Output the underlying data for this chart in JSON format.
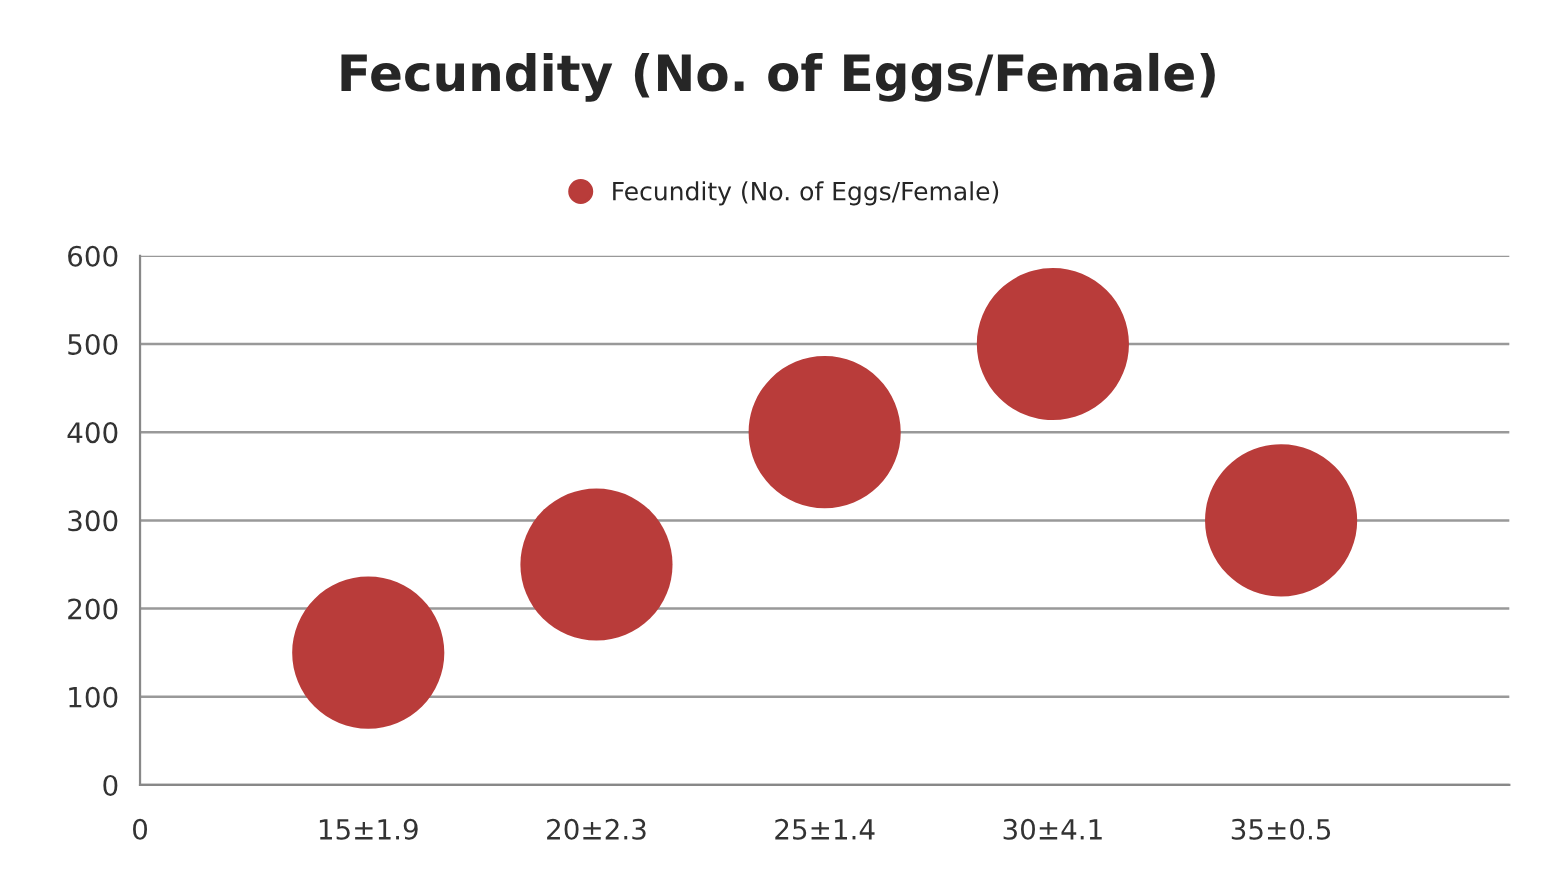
{
  "chart_data": {
    "type": "bubble",
    "title": "Fecundity (No. of Eggs/Female)",
    "categories": [
      "0",
      "15±1.9",
      "20±2.3",
      "25±1.4",
      "30±4.1",
      "35±0.5",
      null
    ],
    "series": [
      {
        "name": "Fecundity (No. of Eggs/Female)",
        "color": "#b93c3a",
        "values": [
          null,
          150,
          250,
          400,
          500,
          300,
          null
        ],
        "sizes": [
          null,
          1,
          1,
          1,
          1,
          1,
          null
        ]
      }
    ],
    "ylim": [
      0,
      600
    ],
    "yticks": [
      0,
      100,
      200,
      300,
      400,
      500,
      600
    ],
    "grid": "y",
    "legend": "top"
  }
}
